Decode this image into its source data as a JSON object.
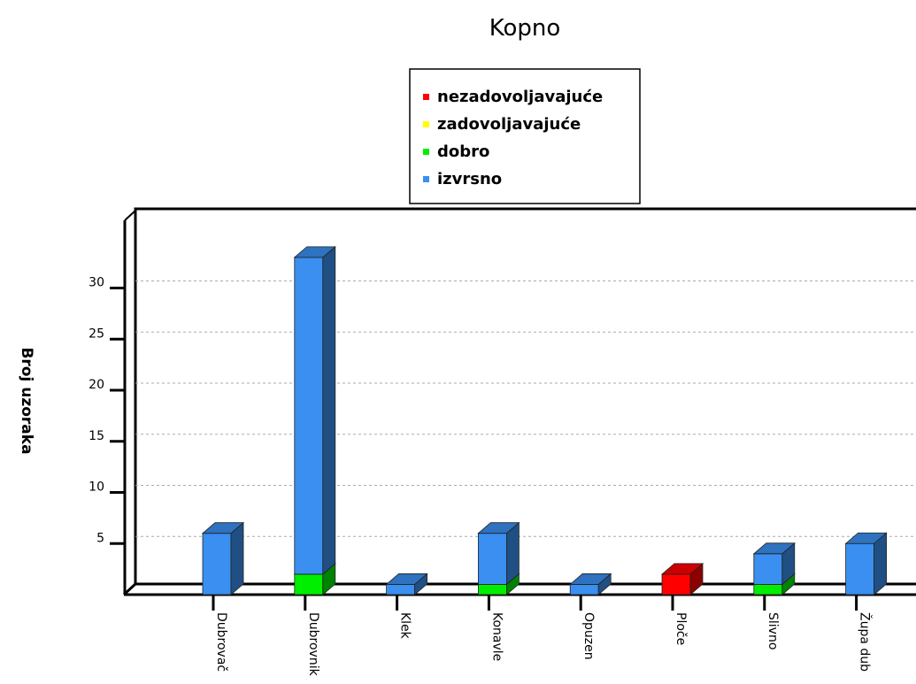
{
  "chart_data": {
    "type": "bar",
    "stacked": true,
    "title": "Kopno",
    "xlabel": "",
    "ylabel": "Broj uzoraka",
    "ylim": [
      0,
      35
    ],
    "yticks": [
      5,
      10,
      15,
      20,
      25,
      30
    ],
    "grid": true,
    "legend_position": "top-center",
    "categories": [
      "Dubrovač",
      "Dubrovnik",
      "Klek",
      "Konavle",
      "Opuzen",
      "Ploče",
      "Slivno",
      "Župa dub"
    ],
    "series": [
      {
        "name": "nezadovoljavajuće",
        "color": "#ff0000",
        "values": [
          0,
          0,
          0,
          0,
          0,
          2,
          0,
          0
        ]
      },
      {
        "name": "zadovoljavajuće",
        "color": "#ffff00",
        "values": [
          0,
          0,
          0,
          0,
          0,
          0,
          0,
          0
        ]
      },
      {
        "name": "dobro",
        "color": "#00ee00",
        "values": [
          0,
          2,
          0,
          1,
          0,
          0,
          1,
          0
        ]
      },
      {
        "name": "izvrsno",
        "color": "#3a8ff0",
        "values": [
          6,
          31,
          1,
          5,
          1,
          0,
          3,
          5
        ]
      }
    ]
  }
}
